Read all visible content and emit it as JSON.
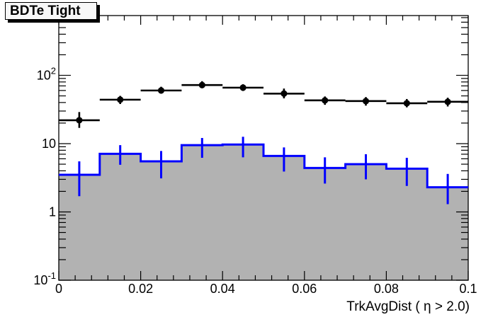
{
  "title_box": {
    "label": "BDTe Tight"
  },
  "colors": {
    "marker": "#000000",
    "hist_line": "#0000ff",
    "hist_fill": "#b2b2b2",
    "frame": "#000000",
    "background": "#ffffff"
  },
  "chart_data": {
    "type": "bar",
    "subtype": "root-histogram-with-data-points",
    "title": "BDTe Tight",
    "xlabel": "TrkAvgDist ( η > 2.0)",
    "ylabel": "",
    "xlim": [
      0,
      0.1
    ],
    "ylim": [
      0.1,
      750
    ],
    "yscale": "log",
    "grid": false,
    "legend": "none",
    "x_major_ticks": [
      0,
      0.02,
      0.04,
      0.06,
      0.08,
      0.1
    ],
    "x_tick_labels": [
      "0",
      "0.02",
      "0.04",
      "0.06",
      "0.08",
      "0.1"
    ],
    "x_minor_step": 0.004,
    "y_major_ticks": [
      0.1,
      1,
      10,
      100
    ],
    "y_tick_labels": [
      {
        "base": "10",
        "exp": "-1"
      },
      {
        "base": "1",
        "exp": ""
      },
      {
        "base": "10",
        "exp": ""
      },
      {
        "base": "10",
        "exp": "2"
      }
    ],
    "bin_edges": [
      0,
      0.01,
      0.02,
      0.03,
      0.04,
      0.05,
      0.06,
      0.07,
      0.08,
      0.09,
      0.1
    ],
    "series": [
      {
        "name": "data-points",
        "style": "filled-circle-with-errors",
        "color": "#000000",
        "x_centers": [
          0.005,
          0.015,
          0.025,
          0.035,
          0.045,
          0.055,
          0.065,
          0.075,
          0.085,
          0.095
        ],
        "values": [
          22,
          44,
          60,
          72,
          66,
          54,
          43,
          42,
          39,
          41
        ],
        "y_low": [
          17,
          38,
          54,
          65,
          59,
          46,
          37,
          36,
          34,
          35
        ],
        "y_high": [
          29,
          50,
          68,
          82,
          74,
          64,
          49,
          48,
          45,
          47
        ],
        "x_err": 0.005
      },
      {
        "name": "filled-histogram",
        "style": "step-filled-with-errors",
        "line_color": "#0000ff",
        "fill_color": "#b2b2b2",
        "values": [
          3.5,
          7.1,
          5.5,
          9.5,
          9.7,
          6.6,
          4.4,
          5.0,
          4.3,
          2.3
        ],
        "y_low": [
          1.7,
          4.9,
          3.1,
          6.2,
          6.3,
          3.9,
          2.6,
          3.0,
          2.4,
          1.3
        ],
        "y_high": [
          5.5,
          9.5,
          7.8,
          12.1,
          12.6,
          8.8,
          6.3,
          7.0,
          6.2,
          3.6
        ]
      }
    ]
  }
}
